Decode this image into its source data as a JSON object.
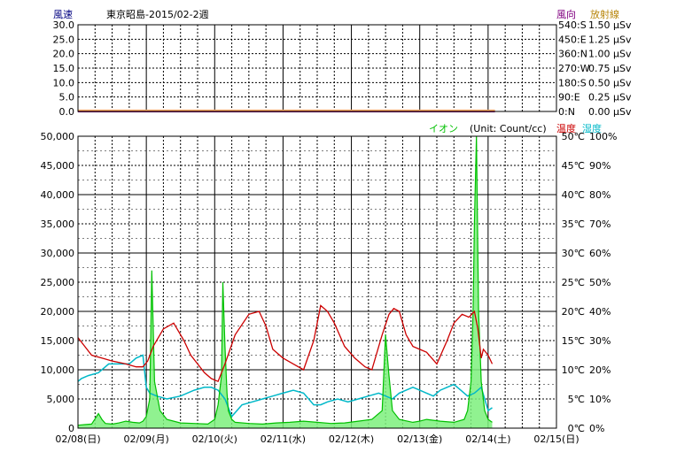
{
  "header": {
    "wind_speed_label": "風速",
    "title": "東京昭島-2015/02-2週",
    "wind_dir_label": "風向",
    "radiation_label": "放射線",
    "ion_label": "イオン",
    "ion_unit": "(Unit: Count/cc)",
    "temp_label": "温度",
    "humidity_label": "湿度"
  },
  "colors": {
    "wind_speed_label": "#000080",
    "wind_dir_label": "#800080",
    "radiation_label": "#b8860b",
    "ion": "#00c000",
    "ion_fill": "#7cf07c",
    "temperature": "#cc0000",
    "humidity": "#00b8c8"
  },
  "top_axes": {
    "wind_speed_ticks": [
      "30.0",
      "25.0",
      "20.0",
      "15.0",
      "10.0",
      "5.0",
      "0.0"
    ],
    "wind_dir_ticks": [
      "540:S",
      "450:E",
      "360:N",
      "270:W",
      "180:S",
      "90:E",
      "0:N"
    ],
    "radiation_ticks": [
      "1.50 μSv",
      "1.25 μSv",
      "1.00 μSv",
      "0.75 μSv",
      "0.50 μSv",
      "0.25 μSv",
      "0.00 μSv"
    ]
  },
  "bottom_axes": {
    "ion_ticks": [
      "50,000",
      "45,000",
      "40,000",
      "35,000",
      "30,000",
      "25,000",
      "20,000",
      "15,000",
      "10,000",
      "5,000",
      "0"
    ],
    "temp_ticks": [
      "50℃",
      "45℃",
      "40℃",
      "35℃",
      "30℃",
      "25℃",
      "20℃",
      "15℃",
      "10℃",
      "5℃",
      "0℃"
    ],
    "humidity_ticks": [
      "100%",
      "90%",
      "80%",
      "70%",
      "60%",
      "50%",
      "40%",
      "30%",
      "20%",
      "10%",
      "0%"
    ]
  },
  "date_labels": [
    "02/08(日)",
    "02/09(月)",
    "02/10(火)",
    "02/11(水)",
    "02/12(木)",
    "02/13(金)",
    "02/14(土)",
    "02/15(日)"
  ],
  "chart_data": [
    {
      "type": "line",
      "panel": "top",
      "ylim": [
        0,
        30
      ],
      "x_days": [
        0,
        6.1
      ],
      "series": [
        {
          "name": "風速",
          "x": [
            0,
            6.1
          ],
          "values": [
            0.0,
            0.0
          ]
        },
        {
          "name": "放射線",
          "x": [
            0,
            6.1
          ],
          "values": [
            0.03,
            0.03
          ]
        }
      ]
    },
    {
      "type": "line",
      "panel": "bottom",
      "x_range_days": [
        0,
        7
      ],
      "ion_ylim": [
        0,
        50000
      ],
      "temp_ylim": [
        0,
        50
      ],
      "humidity_ylim": [
        0,
        100
      ],
      "series": [
        {
          "name": "温度",
          "axis": "temp",
          "x": [
            0,
            0.1,
            0.2,
            0.35,
            0.5,
            0.7,
            0.85,
            0.95,
            1.02,
            1.1,
            1.25,
            1.4,
            1.55,
            1.65,
            1.75,
            1.85,
            1.95,
            2.05,
            2.15,
            2.3,
            2.5,
            2.65,
            2.75,
            2.85,
            3.0,
            3.15,
            3.3,
            3.45,
            3.55,
            3.65,
            3.75,
            3.9,
            4.05,
            4.2,
            4.3,
            4.45,
            4.55,
            4.62,
            4.7,
            4.8,
            4.9,
            5.0,
            5.1,
            5.25,
            5.4,
            5.5,
            5.62,
            5.72,
            5.8,
            5.85,
            5.9,
            5.93,
            6.0,
            6.06
          ],
          "values": [
            15.5,
            14.0,
            12.5,
            12.0,
            11.5,
            11.0,
            10.5,
            10.5,
            11.5,
            14.0,
            17.0,
            18.0,
            15.0,
            12.5,
            11.0,
            9.5,
            8.5,
            8.0,
            11.0,
            16.0,
            19.5,
            20.0,
            17.5,
            13.5,
            12.0,
            11.0,
            10.0,
            15.0,
            21.0,
            20.0,
            18.0,
            14.0,
            12.0,
            10.5,
            10.0,
            16.0,
            19.5,
            20.5,
            20.0,
            16.0,
            14.0,
            13.5,
            13.0,
            11.0,
            15.0,
            18.0,
            19.5,
            19.0,
            20.0,
            17.0,
            12.0,
            13.5,
            12.5,
            11.0
          ]
        },
        {
          "name": "湿度",
          "axis": "humidity",
          "x": [
            0,
            0.05,
            0.15,
            0.3,
            0.45,
            0.6,
            0.75,
            0.85,
            0.95,
            1.0,
            1.05,
            1.15,
            1.3,
            1.5,
            1.7,
            1.85,
            1.95,
            2.05,
            2.15,
            2.25,
            2.4,
            2.55,
            2.7,
            2.85,
            3.0,
            3.15,
            3.3,
            3.45,
            3.55,
            3.65,
            3.8,
            3.95,
            4.1,
            4.25,
            4.4,
            4.5,
            4.6,
            4.7,
            4.8,
            4.9,
            5.0,
            5.1,
            5.2,
            5.3,
            5.4,
            5.5,
            5.6,
            5.7,
            5.8,
            5.9,
            6.0,
            6.06
          ],
          "values": [
            16,
            17,
            18,
            19,
            22,
            22,
            22,
            24,
            25,
            14,
            12,
            11,
            10,
            11,
            13,
            14,
            14,
            13,
            10,
            4,
            8,
            9,
            10,
            11,
            12,
            13,
            12,
            8,
            8,
            9,
            10,
            9,
            10,
            11,
            12,
            11,
            10,
            12,
            13,
            14,
            13,
            12,
            11,
            13,
            14,
            15,
            13,
            11,
            12,
            14,
            6,
            7
          ]
        },
        {
          "name": "イオン",
          "axis": "ion",
          "x": [
            0,
            0.1,
            0.2,
            0.3,
            0.35,
            0.4,
            0.5,
            0.6,
            0.7,
            0.8,
            0.9,
            0.95,
            1.0,
            1.05,
            1.08,
            1.12,
            1.2,
            1.3,
            1.5,
            1.7,
            1.9,
            2.0,
            2.05,
            2.1,
            2.12,
            2.15,
            2.18,
            2.2,
            2.25,
            2.3,
            2.5,
            2.7,
            2.9,
            3.1,
            3.3,
            3.5,
            3.7,
            3.9,
            4.1,
            4.3,
            4.45,
            4.5,
            4.55,
            4.6,
            4.7,
            4.9,
            5.0,
            5.1,
            5.3,
            5.5,
            5.65,
            5.7,
            5.75,
            5.78,
            5.8,
            5.83,
            5.86,
            5.9,
            5.95,
            6.0,
            6.06
          ],
          "values": [
            500,
            600,
            700,
            2500,
            1500,
            800,
            700,
            900,
            1200,
            1000,
            900,
            1200,
            2000,
            5000,
            27000,
            8000,
            3000,
            1500,
            900,
            800,
            700,
            1500,
            4000,
            9000,
            25000,
            14000,
            6000,
            3000,
            1500,
            1000,
            800,
            700,
            900,
            1000,
            1200,
            1000,
            800,
            900,
            1200,
            1500,
            3000,
            16000,
            9000,
            3000,
            1500,
            1000,
            1200,
            1500,
            1200,
            1000,
            1500,
            3000,
            8000,
            20000,
            35000,
            50000,
            20000,
            8000,
            3000,
            1500,
            1000
          ]
        }
      ]
    }
  ]
}
